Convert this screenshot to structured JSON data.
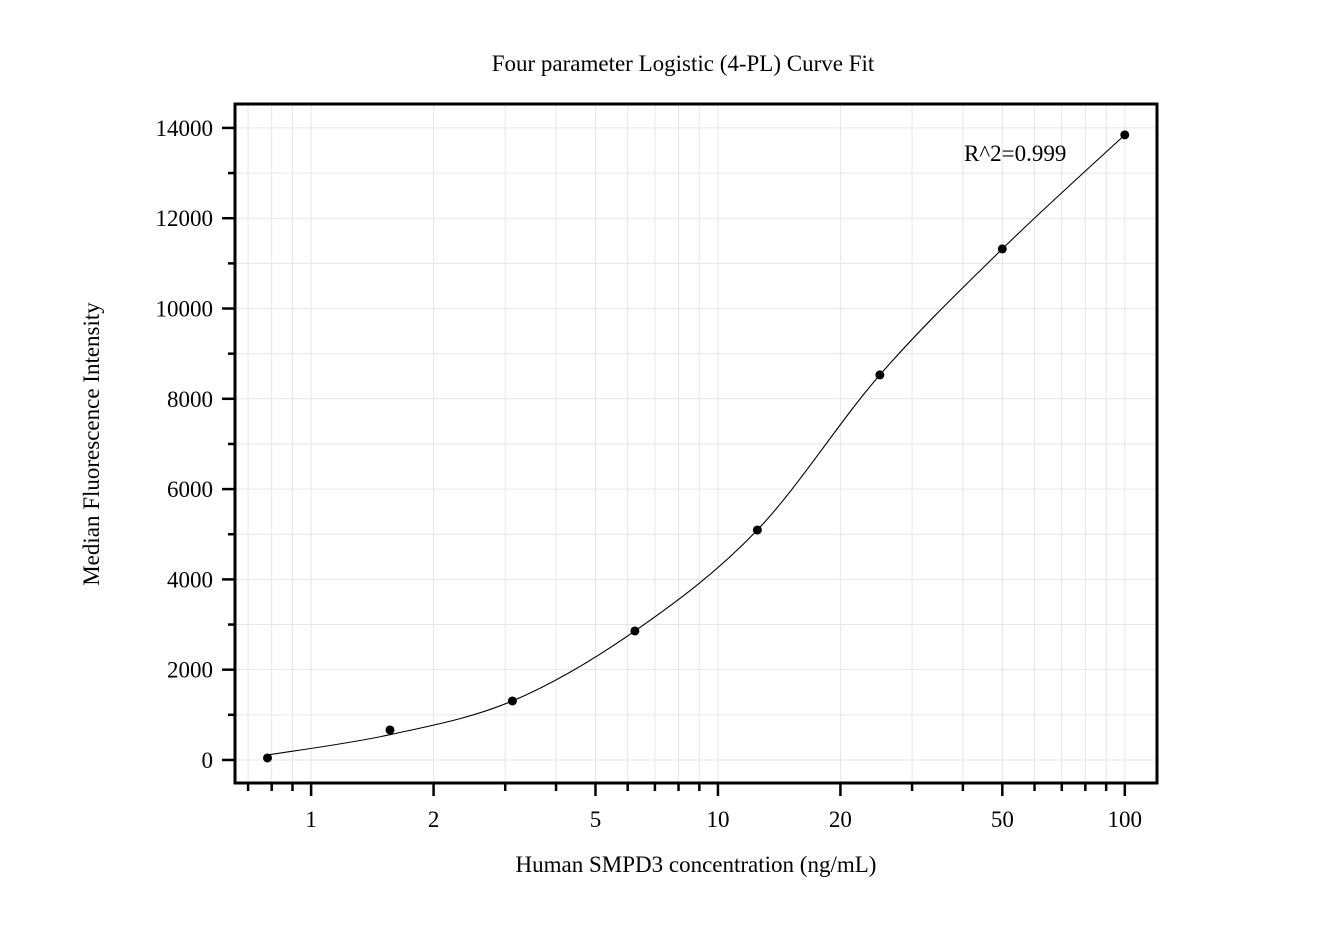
{
  "chart_data": {
    "type": "scatter",
    "title": "Four parameter Logistic (4-PL) Curve Fit",
    "xlabel": "Human SMPD3 concentration (ng/mL)",
    "ylabel": "Median Fluorescence Intensity",
    "x_scale": "log",
    "xlim": [
      0.65,
      120
    ],
    "ylim": [
      -510,
      14530
    ],
    "x_ticks": [
      1,
      2,
      5,
      10,
      20,
      50,
      100
    ],
    "x_tick_labels": [
      "1",
      "2",
      "5",
      "10",
      "20",
      "50",
      "100"
    ],
    "y_ticks": [
      0,
      2000,
      4000,
      6000,
      8000,
      10000,
      12000,
      14000
    ],
    "y_tick_labels": [
      "0",
      "2000",
      "4000",
      "6000",
      "8000",
      "10000",
      "12000",
      "14000"
    ],
    "grid": true,
    "annotation": "R^2=0.999",
    "series": [
      {
        "x": [
          0.78125,
          1.5625,
          3.125,
          6.25,
          12.5,
          25,
          50,
          100
        ],
        "y": [
          44,
          665,
          1307,
          2858,
          5095,
          8529,
          11320,
          13846
        ]
      }
    ],
    "fit_curve": "4-PL",
    "colors": {
      "points": "#000000",
      "curve": "#000000",
      "grid": "#e6e6e6"
    }
  }
}
